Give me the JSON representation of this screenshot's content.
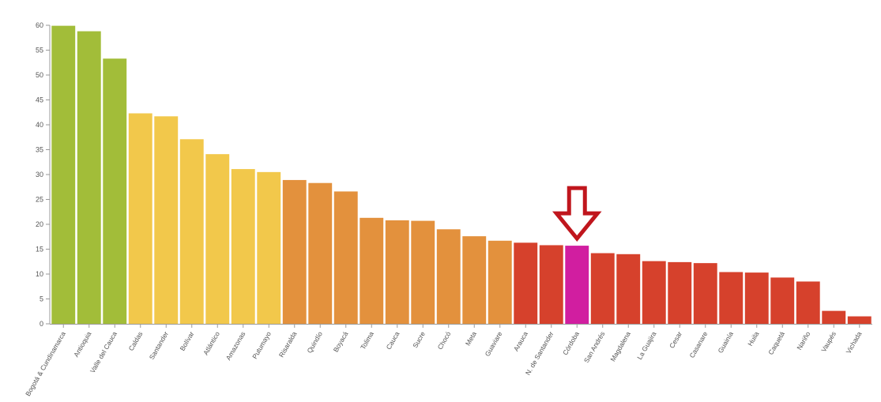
{
  "chart_data": {
    "type": "bar",
    "title": "",
    "xlabel": "",
    "ylabel": "",
    "ylim": [
      0,
      60
    ],
    "yticks": [
      0,
      5,
      10,
      15,
      20,
      25,
      30,
      35,
      40,
      45,
      50,
      55,
      60
    ],
    "grid": false,
    "categories": [
      "Bogotá & Cundinamarca",
      "Antioquia",
      "Valle del Cauca",
      "Caldas",
      "Santander",
      "Bolívar",
      "Atlántico",
      "Amazonas",
      "Putumayo",
      "Risaralda",
      "Quindío",
      "Boyacá",
      "Tolima",
      "Cauca",
      "Sucre",
      "Chocó",
      "Meta",
      "Guaviare",
      "Arauca",
      "N. de Santander",
      "Córdoba",
      "San Andrés",
      "Magdalena",
      "La Guajira",
      "Cesar",
      "Casanare",
      "Guainía",
      "Huila",
      "Caquetá",
      "Nariño",
      "Vaupés",
      "Vichada"
    ],
    "values": [
      59.9,
      58.8,
      53.3,
      42.3,
      41.7,
      37.1,
      34.1,
      31.1,
      30.5,
      28.9,
      28.3,
      26.6,
      21.3,
      20.8,
      20.7,
      19.0,
      17.6,
      16.7,
      16.3,
      15.8,
      15.7,
      14.2,
      14.0,
      12.6,
      12.4,
      12.2,
      10.4,
      10.3,
      9.3,
      8.5,
      2.6,
      1.5
    ],
    "colors": [
      "#a2bd39",
      "#a2bd39",
      "#a2bd39",
      "#f2c84b",
      "#f2c84b",
      "#f2c84b",
      "#f2c84b",
      "#f2c84b",
      "#f2c84b",
      "#e3913d",
      "#e3913d",
      "#e3913d",
      "#e3913d",
      "#e3913d",
      "#e3913d",
      "#e3913d",
      "#e3913d",
      "#e3913d",
      "#d6412c",
      "#d6412c",
      "#d11ea0",
      "#d6412c",
      "#d6412c",
      "#d6412c",
      "#d6412c",
      "#d6412c",
      "#d6412c",
      "#d6412c",
      "#d6412c",
      "#d6412c",
      "#d6412c",
      "#d6412c"
    ],
    "highlight": {
      "category": "Córdoba",
      "marker": "arrow-down-icon",
      "color": "#c0161d"
    }
  }
}
